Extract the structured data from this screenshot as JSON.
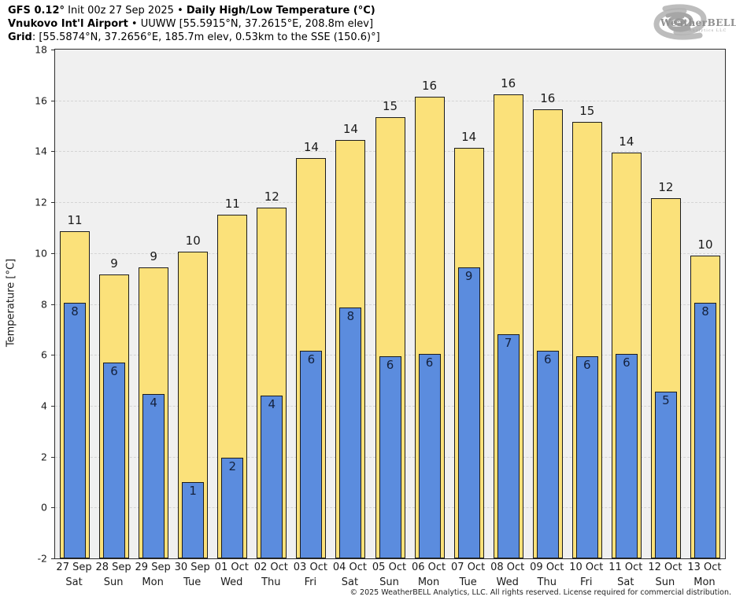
{
  "header": {
    "line1_bold1": "GFS 0.12°",
    "line1_regular": " Init 00z 27 Sep 2025 • ",
    "line1_bold2": "Daily High/Low Temperature (°C)",
    "line2_bold": "Vnukovo Int'l Airport",
    "line2_regular": " • UUWW [55.5915°N, 37.2615°E, 208.8m elev]",
    "line3_bold": "Grid",
    "line3_regular": ": [55.5874°N, 37.2656°E, 185.7m elev, 0.53km to the SSE (150.6)°]"
  },
  "logo": {
    "name": "WeatherBELL",
    "sub": "Analytics LLC"
  },
  "footer": {
    "copyright": "© 2025 WeatherBELL Analytics, LLC. All rights reserved. License required for commercial distribution."
  },
  "chart_data": {
    "type": "bar",
    "title": "Daily High/Low Temperature (°C)",
    "ylabel": "Temperature [°C]",
    "ylim": [
      -2,
      18
    ],
    "yticks": [
      18,
      16,
      14,
      12,
      10,
      8,
      6,
      4,
      2,
      0,
      -2
    ],
    "grid": true,
    "plot_bg": "#f0f0f0",
    "dates": [
      "27 Sep",
      "28 Sep",
      "29 Sep",
      "30 Sep",
      "01 Oct",
      "02 Oct",
      "03 Oct",
      "04 Oct",
      "05 Oct",
      "06 Oct",
      "07 Oct",
      "08 Oct",
      "09 Oct",
      "10 Oct",
      "11 Oct",
      "12 Oct",
      "13 Oct"
    ],
    "days": [
      "Sat",
      "Sun",
      "Mon",
      "Tue",
      "Wed",
      "Thu",
      "Fri",
      "Sat",
      "Sun",
      "Mon",
      "Tue",
      "Wed",
      "Thu",
      "Fri",
      "Sat",
      "Sun",
      "Mon"
    ],
    "series": [
      {
        "name": "High",
        "color": "#fbe17a",
        "labels": [
          11,
          9,
          9,
          10,
          11,
          12,
          14,
          14,
          15,
          16,
          14,
          16,
          16,
          15,
          14,
          12,
          10
        ],
        "values": [
          10.85,
          9.15,
          9.45,
          10.05,
          11.5,
          11.8,
          13.75,
          14.45,
          15.35,
          16.15,
          14.15,
          16.25,
          15.65,
          15.15,
          13.95,
          12.15,
          9.9
        ]
      },
      {
        "name": "Low",
        "color": "#5b8cde",
        "labels": [
          8,
          6,
          4,
          1,
          2,
          4,
          6,
          8,
          6,
          6,
          9,
          7,
          6,
          6,
          6,
          5,
          8
        ],
        "values": [
          8.05,
          5.7,
          4.45,
          1.0,
          1.95,
          4.4,
          6.15,
          7.85,
          5.95,
          6.05,
          9.45,
          6.8,
          6.15,
          5.95,
          6.05,
          4.55,
          8.05
        ]
      }
    ]
  }
}
